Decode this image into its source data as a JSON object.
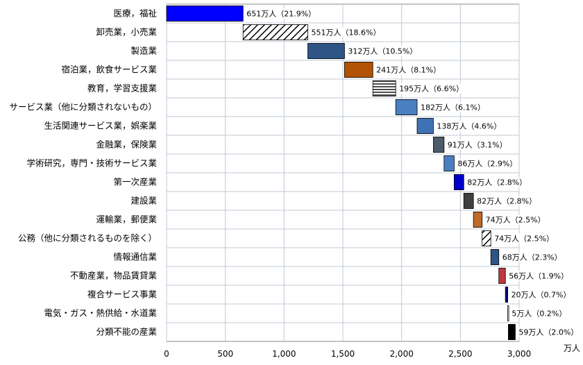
{
  "chart_data": {
    "type": "bar",
    "subtype": "waterfall-horizontal",
    "title": "",
    "xlabel": "",
    "ylabel": "",
    "unit": "万人",
    "xlim": [
      0,
      3000
    ],
    "xticks": [
      0,
      500,
      1000,
      1500,
      2000,
      2500,
      3000
    ],
    "xtick_labels": [
      "0",
      "500",
      "1,000",
      "1,500",
      "2,000",
      "2,500",
      "3,000"
    ],
    "grid": true,
    "categories": [
      "医療，福祉",
      "卸売業，小売業",
      "製造業",
      "宿泊業，飲食サービス業",
      "教育，学習支援業",
      "サービス業（他に分類されないもの）",
      "生活関連サービス業，娯楽業",
      "金融業，保険業",
      "学術研究，専門・技術サービス業",
      "第一次産業",
      "建設業",
      "運輸業，郵便業",
      "公務（他に分類されるものを除く）",
      "情報通信業",
      "不動産業，物品賃貸業",
      "複合サービス事業",
      "電気・ガス・熱供給・水道業",
      "分類不能の産業"
    ],
    "values": [
      651,
      551,
      312,
      241,
      195,
      182,
      138,
      91,
      86,
      82,
      82,
      74,
      74,
      68,
      56,
      20,
      5,
      59
    ],
    "data_labels": [
      "651万人（21.9%）",
      "551万人（18.6%）",
      "312万人（10.5%）",
      "241万人（8.1%）",
      "195万人（6.6%）",
      "182万人（6.1%）",
      "138万人（4.6%）",
      "91万人（3.1%）",
      "86万人（2.9%）",
      "82万人（2.8%）",
      "82万人（2.8%）",
      "74万人（2.5%）",
      "74万人（2.5%）",
      "68万人（2.3%）",
      "56万人（1.9%）",
      "20万人（0.7%）",
      "5万人（0.2%）",
      "59万人（2.0%）"
    ],
    "fills": [
      "#0000ff",
      "hatch-diag",
      "#2e5586",
      "#b25303",
      "hatch-horiz",
      "#4a7fc1",
      "#3f72b5",
      "#4d5c6b",
      "#4a7fc1",
      "#0000cc",
      "#404040",
      "#c06a2a",
      "hatch-diag",
      "#2e5586",
      "#c0373d",
      "#000080",
      "#ffffff",
      "#000000"
    ],
    "colors": {
      "grid": "#c0c8d4",
      "axis": "#888888",
      "label_bg": "#ffffff"
    }
  }
}
